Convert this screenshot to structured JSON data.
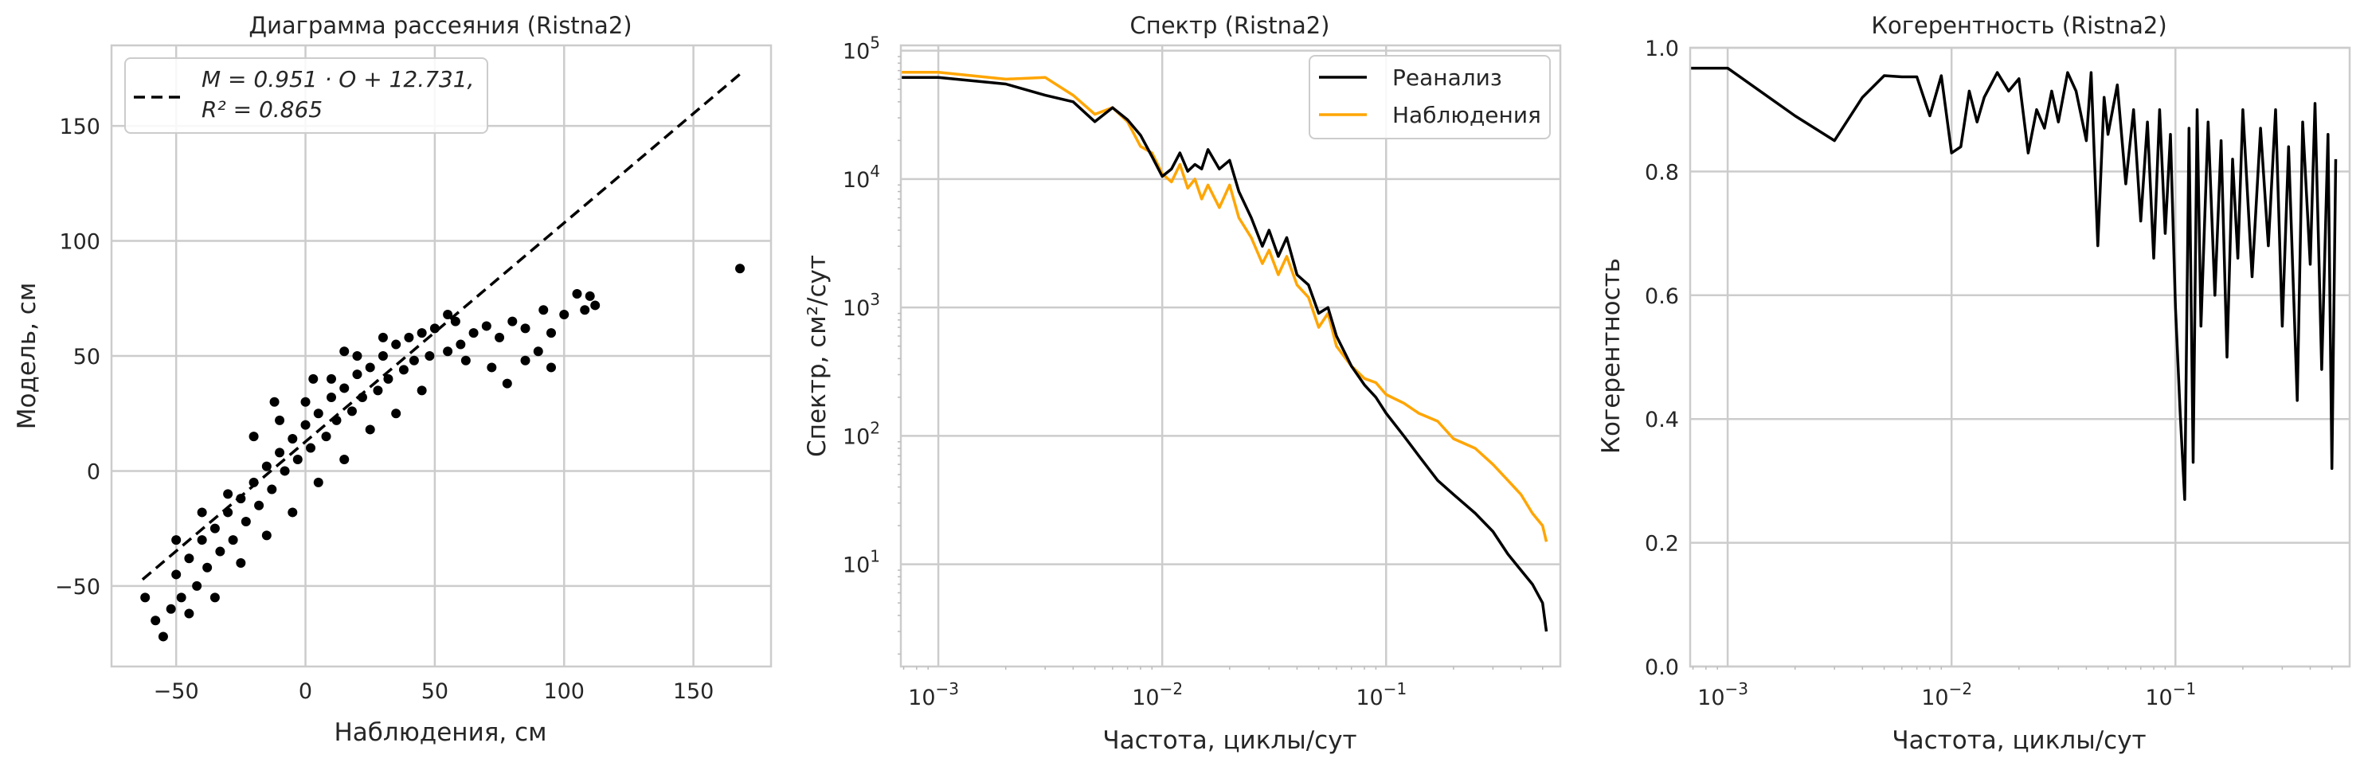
{
  "chart_data": [
    {
      "type": "scatter",
      "title": "Диаграмма рассеяния (Ristna2)",
      "xlabel": "Наблюдения, см",
      "ylabel": "Модель, см",
      "xlim": [
        -75,
        180
      ],
      "ylim": [
        -85,
        185
      ],
      "xticks": [
        -50,
        0,
        50,
        100,
        150
      ],
      "yticks": [
        -50,
        0,
        50,
        100,
        150
      ],
      "grid": true,
      "legend_position": "top-left",
      "fit": {
        "slope": 0.951,
        "intercept": 12.731,
        "x_range": [
          -63,
          168
        ]
      },
      "legend": {
        "line1": "M = 0.951 · O + 12.731,",
        "line2": "R² = 0.865"
      },
      "points": [
        [
          -62,
          -55
        ],
        [
          -58,
          -65
        ],
        [
          -55,
          -72
        ],
        [
          -52,
          -60
        ],
        [
          -50,
          -45
        ],
        [
          -48,
          -55
        ],
        [
          -45,
          -38
        ],
        [
          -42,
          -50
        ],
        [
          -40,
          -30
        ],
        [
          -38,
          -42
        ],
        [
          -35,
          -25
        ],
        [
          -33,
          -35
        ],
        [
          -30,
          -18
        ],
        [
          -28,
          -30
        ],
        [
          -25,
          -12
        ],
        [
          -23,
          -22
        ],
        [
          -20,
          -5
        ],
        [
          -18,
          -15
        ],
        [
          -15,
          2
        ],
        [
          -13,
          -8
        ],
        [
          -10,
          8
        ],
        [
          -8,
          0
        ],
        [
          -5,
          14
        ],
        [
          -3,
          5
        ],
        [
          0,
          20
        ],
        [
          2,
          10
        ],
        [
          5,
          25
        ],
        [
          8,
          15
        ],
        [
          10,
          32
        ],
        [
          12,
          22
        ],
        [
          15,
          36
        ],
        [
          18,
          26
        ],
        [
          20,
          42
        ],
        [
          22,
          32
        ],
        [
          25,
          45
        ],
        [
          28,
          35
        ],
        [
          30,
          50
        ],
        [
          32,
          40
        ],
        [
          35,
          55
        ],
        [
          38,
          44
        ],
        [
          40,
          58
        ],
        [
          42,
          48
        ],
        [
          45,
          60
        ],
        [
          48,
          50
        ],
        [
          50,
          62
        ],
        [
          55,
          52
        ],
        [
          58,
          65
        ],
        [
          60,
          55
        ],
        [
          65,
          60
        ],
        [
          70,
          63
        ],
        [
          75,
          58
        ],
        [
          80,
          65
        ],
        [
          85,
          62
        ],
        [
          90,
          52
        ],
        [
          92,
          70
        ],
        [
          95,
          60
        ],
        [
          100,
          68
        ],
        [
          105,
          77
        ],
        [
          108,
          70
        ],
        [
          110,
          76
        ],
        [
          112,
          72
        ],
        [
          168,
          88
        ],
        [
          -30,
          -10
        ],
        [
          -20,
          15
        ],
        [
          -10,
          22
        ],
        [
          0,
          30
        ],
        [
          10,
          40
        ],
        [
          20,
          50
        ],
        [
          30,
          58
        ],
        [
          -40,
          -18
        ],
        [
          -50,
          -30
        ],
        [
          -5,
          -18
        ],
        [
          5,
          -5
        ],
        [
          15,
          5
        ],
        [
          25,
          18
        ],
        [
          -25,
          -40
        ],
        [
          -15,
          -28
        ],
        [
          35,
          25
        ],
        [
          45,
          35
        ],
        [
          62,
          48
        ],
        [
          72,
          45
        ],
        [
          78,
          38
        ],
        [
          85,
          48
        ],
        [
          95,
          45
        ],
        [
          -35,
          -55
        ],
        [
          -45,
          -62
        ],
        [
          -12,
          30
        ],
        [
          3,
          40
        ],
        [
          15,
          52
        ],
        [
          55,
          68
        ]
      ]
    },
    {
      "type": "line",
      "title": "Спектр (Ristna2)",
      "xlabel": "Частота, циклы/сут",
      "ylabel": "Спектр, см²/сут",
      "xscale": "log",
      "yscale": "log",
      "xlim": [
        0.00068,
        0.6
      ],
      "ylim": [
        1.6,
        110000
      ],
      "xticks": [
        "10⁻³",
        "10⁻²",
        "10⁻¹"
      ],
      "yticks": [
        "10¹",
        "10²",
        "10³",
        "10⁴",
        "10⁵"
      ],
      "grid": true,
      "legend_position": "top-right",
      "series": [
        {
          "name": "Реанализ",
          "color": "#000000",
          "points": [
            [
              0.00068,
              62000
            ],
            [
              0.001,
              62000
            ],
            [
              0.002,
              55000
            ],
            [
              0.003,
              45000
            ],
            [
              0.004,
              40000
            ],
            [
              0.005,
              28000
            ],
            [
              0.006,
              36000
            ],
            [
              0.007,
              29000
            ],
            [
              0.008,
              22000
            ],
            [
              0.009,
              15000
            ],
            [
              0.01,
              10500
            ],
            [
              0.011,
              12000
            ],
            [
              0.012,
              16000
            ],
            [
              0.013,
              11500
            ],
            [
              0.014,
              13000
            ],
            [
              0.015,
              12000
            ],
            [
              0.016,
              17000
            ],
            [
              0.018,
              12000
            ],
            [
              0.02,
              14000
            ],
            [
              0.022,
              8000
            ],
            [
              0.025,
              5000
            ],
            [
              0.028,
              3000
            ],
            [
              0.03,
              4000
            ],
            [
              0.033,
              2500
            ],
            [
              0.036,
              3500
            ],
            [
              0.04,
              1800
            ],
            [
              0.045,
              1500
            ],
            [
              0.05,
              900
            ],
            [
              0.055,
              1000
            ],
            [
              0.06,
              600
            ],
            [
              0.07,
              350
            ],
            [
              0.08,
              250
            ],
            [
              0.09,
              200
            ],
            [
              0.1,
              150
            ],
            [
              0.12,
              100
            ],
            [
              0.14,
              70
            ],
            [
              0.17,
              45
            ],
            [
              0.2,
              35
            ],
            [
              0.25,
              25
            ],
            [
              0.3,
              18
            ],
            [
              0.35,
              12
            ],
            [
              0.4,
              9
            ],
            [
              0.45,
              7
            ],
            [
              0.5,
              5
            ],
            [
              0.52,
              3
            ]
          ]
        },
        {
          "name": "Наблюдения",
          "color": "#ffa500",
          "points": [
            [
              0.00068,
              68000
            ],
            [
              0.001,
              68000
            ],
            [
              0.002,
              60000
            ],
            [
              0.003,
              62000
            ],
            [
              0.004,
              45000
            ],
            [
              0.005,
              32000
            ],
            [
              0.006,
              36000
            ],
            [
              0.007,
              28000
            ],
            [
              0.008,
              18000
            ],
            [
              0.009,
              16000
            ],
            [
              0.01,
              11000
            ],
            [
              0.011,
              9500
            ],
            [
              0.012,
              13000
            ],
            [
              0.013,
              8500
            ],
            [
              0.014,
              10000
            ],
            [
              0.015,
              7000
            ],
            [
              0.016,
              9000
            ],
            [
              0.018,
              6000
            ],
            [
              0.02,
              9000
            ],
            [
              0.022,
              5000
            ],
            [
              0.025,
              3500
            ],
            [
              0.028,
              2200
            ],
            [
              0.03,
              2800
            ],
            [
              0.033,
              1800
            ],
            [
              0.036,
              2500
            ],
            [
              0.04,
              1500
            ],
            [
              0.045,
              1200
            ],
            [
              0.05,
              700
            ],
            [
              0.055,
              900
            ],
            [
              0.06,
              500
            ],
            [
              0.07,
              350
            ],
            [
              0.08,
              280
            ],
            [
              0.09,
              260
            ],
            [
              0.1,
              210
            ],
            [
              0.12,
              180
            ],
            [
              0.14,
              150
            ],
            [
              0.17,
              130
            ],
            [
              0.2,
              95
            ],
            [
              0.25,
              80
            ],
            [
              0.3,
              60
            ],
            [
              0.35,
              45
            ],
            [
              0.4,
              35
            ],
            [
              0.45,
              25
            ],
            [
              0.5,
              20
            ],
            [
              0.52,
              15
            ]
          ]
        }
      ]
    },
    {
      "type": "line",
      "title": "Когерентность (Ristna2)",
      "xlabel": "Частота, циклы/сут",
      "ylabel": "Когерентность",
      "xscale": "log",
      "xlim": [
        0.00068,
        0.6
      ],
      "ylim": [
        0,
        1.0
      ],
      "xticks": [
        "10⁻³",
        "10⁻²",
        "10⁻¹"
      ],
      "yticks": [
        "0.0",
        "0.2",
        "0.4",
        "0.6",
        "0.8",
        "1.0"
      ],
      "grid": true,
      "series": [
        {
          "color": "#000000",
          "points": [
            [
              0.00068,
              0.967
            ],
            [
              0.001,
              0.967
            ],
            [
              0.002,
              0.89
            ],
            [
              0.003,
              0.85
            ],
            [
              0.004,
              0.92
            ],
            [
              0.005,
              0.955
            ],
            [
              0.006,
              0.953
            ],
            [
              0.007,
              0.953
            ],
            [
              0.008,
              0.89
            ],
            [
              0.009,
              0.955
            ],
            [
              0.01,
              0.83
            ],
            [
              0.011,
              0.84
            ],
            [
              0.012,
              0.93
            ],
            [
              0.013,
              0.88
            ],
            [
              0.014,
              0.92
            ],
            [
              0.016,
              0.96
            ],
            [
              0.018,
              0.93
            ],
            [
              0.02,
              0.95
            ],
            [
              0.022,
              0.83
            ],
            [
              0.024,
              0.9
            ],
            [
              0.026,
              0.87
            ],
            [
              0.028,
              0.93
            ],
            [
              0.03,
              0.88
            ],
            [
              0.033,
              0.96
            ],
            [
              0.036,
              0.93
            ],
            [
              0.04,
              0.85
            ],
            [
              0.042,
              0.96
            ],
            [
              0.045,
              0.68
            ],
            [
              0.048,
              0.92
            ],
            [
              0.05,
              0.86
            ],
            [
              0.055,
              0.94
            ],
            [
              0.06,
              0.78
            ],
            [
              0.065,
              0.9
            ],
            [
              0.07,
              0.72
            ],
            [
              0.075,
              0.88
            ],
            [
              0.08,
              0.66
            ],
            [
              0.085,
              0.9
            ],
            [
              0.09,
              0.7
            ],
            [
              0.095,
              0.86
            ],
            [
              0.1,
              0.58
            ],
            [
              0.105,
              0.41
            ],
            [
              0.11,
              0.27
            ],
            [
              0.115,
              0.87
            ],
            [
              0.12,
              0.33
            ],
            [
              0.125,
              0.9
            ],
            [
              0.13,
              0.55
            ],
            [
              0.14,
              0.88
            ],
            [
              0.15,
              0.6
            ],
            [
              0.16,
              0.85
            ],
            [
              0.17,
              0.5
            ],
            [
              0.18,
              0.82
            ],
            [
              0.19,
              0.66
            ],
            [
              0.2,
              0.9
            ],
            [
              0.22,
              0.63
            ],
            [
              0.24,
              0.87
            ],
            [
              0.26,
              0.68
            ],
            [
              0.28,
              0.9
            ],
            [
              0.3,
              0.55
            ],
            [
              0.32,
              0.84
            ],
            [
              0.35,
              0.43
            ],
            [
              0.37,
              0.88
            ],
            [
              0.4,
              0.65
            ],
            [
              0.42,
              0.91
            ],
            [
              0.45,
              0.48
            ],
            [
              0.48,
              0.86
            ],
            [
              0.5,
              0.32
            ],
            [
              0.52,
              0.82
            ]
          ]
        }
      ]
    }
  ]
}
